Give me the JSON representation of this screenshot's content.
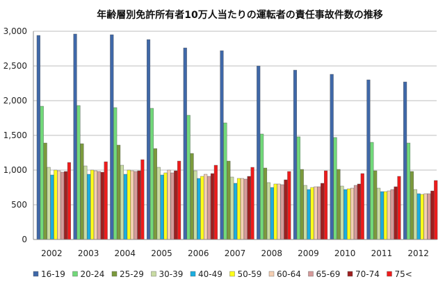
{
  "chart_data": {
    "type": "bar",
    "title": "年齢層別免許所有者10万人当たりの運転者の責任事故件数の推移",
    "categories": [
      "2002",
      "2003",
      "2004",
      "2005",
      "2006",
      "2007",
      "2008",
      "2009",
      "2010",
      "2011",
      "2012"
    ],
    "ylim": [
      0,
      3000
    ],
    "yticks": [
      "0",
      "500",
      "1,000",
      "1,500",
      "2,000",
      "2,500",
      "3,000"
    ],
    "legend_position": "bottom",
    "grid": true,
    "series": [
      {
        "name": "16-19",
        "color": "#3f68a8",
        "values": [
          2940,
          2960,
          2950,
          2880,
          2760,
          2720,
          2500,
          2440,
          2380,
          2300,
          2270
        ]
      },
      {
        "name": "20-24",
        "color": "#72d97a",
        "values": [
          1920,
          1930,
          1900,
          1890,
          1790,
          1680,
          1520,
          1480,
          1470,
          1400,
          1390
        ]
      },
      {
        "name": "25-29",
        "color": "#7b9a3c",
        "values": [
          1390,
          1380,
          1360,
          1310,
          1240,
          1130,
          1030,
          1010,
          1010,
          990,
          980
        ]
      },
      {
        "name": "30-39",
        "color": "#c9dca3",
        "values": [
          1040,
          1060,
          1070,
          1040,
          990,
          900,
          820,
          780,
          770,
          740,
          720
        ]
      },
      {
        "name": "40-49",
        "color": "#1aaee0",
        "values": [
          930,
          940,
          940,
          930,
          880,
          810,
          750,
          720,
          720,
          690,
          660
        ]
      },
      {
        "name": "50-59",
        "color": "#ffff1a",
        "values": [
          1000,
          1000,
          1000,
          960,
          910,
          880,
          800,
          750,
          730,
          690,
          650
        ]
      },
      {
        "name": "60-64",
        "color": "#f4cfb2",
        "values": [
          990,
          990,
          990,
          1000,
          940,
          880,
          800,
          760,
          740,
          700,
          660
        ]
      },
      {
        "name": "65-69",
        "color": "#d69a9a",
        "values": [
          970,
          980,
          980,
          960,
          910,
          870,
          790,
          760,
          780,
          720,
          660
        ]
      },
      {
        "name": "70-74",
        "color": "#9e1f1f",
        "values": [
          980,
          970,
          990,
          990,
          950,
          910,
          860,
          810,
          800,
          760,
          700
        ]
      },
      {
        "name": "75<",
        "color": "#ee1c1c",
        "values": [
          1110,
          1120,
          1150,
          1130,
          1070,
          1040,
          980,
          990,
          950,
          910,
          850
        ]
      }
    ]
  }
}
